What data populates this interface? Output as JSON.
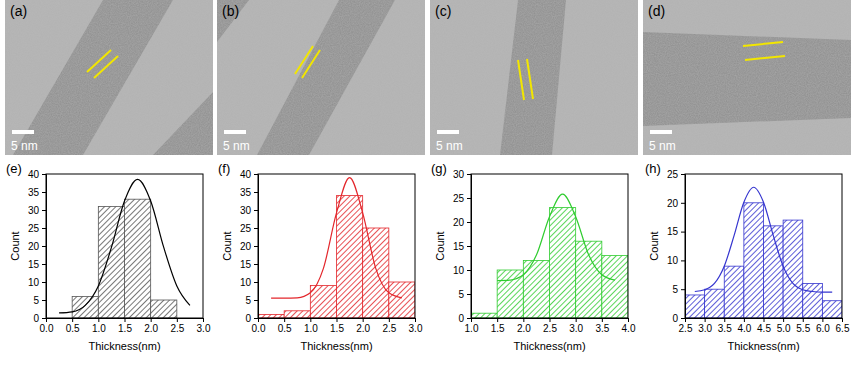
{
  "images": [
    {
      "label": "(a)",
      "scale_bar": "5 nm"
    },
    {
      "label": "(b)",
      "scale_bar": "5 nm"
    },
    {
      "label": "(c)",
      "scale_bar": "5 nm"
    },
    {
      "label": "(d)",
      "scale_bar": "5 nm"
    }
  ],
  "chart_data": [
    {
      "type": "histogram",
      "title": "(e)",
      "x_label": "Thickness(nm)",
      "y_label": "Count",
      "bins": [
        0.5,
        1.0,
        1.5,
        2.0,
        2.5
      ],
      "values": [
        6,
        31,
        33,
        5
      ],
      "color": "#555555",
      "xlim": [
        0,
        3
      ],
      "xticks": [
        {
          "value": 0,
          "label": "0.0"
        },
        0.5,
        {
          "value": 1,
          "label": "1.0"
        },
        1.5,
        {
          "value": 2,
          "label": "2.0"
        },
        2.5,
        {
          "value": 3,
          "label": "3.0"
        }
      ],
      "ylim": [
        0,
        40
      ],
      "yticks": [
        0,
        5,
        10,
        15,
        20,
        25,
        30,
        35,
        40
      ],
      "series": [
        {
          "type": "line",
          "color": "#000000",
          "x": [
            0.25,
            0.5,
            0.75,
            1.0,
            1.25,
            1.5,
            1.75,
            2.0,
            2.25,
            2.5,
            2.75
          ],
          "values": [
            1.4,
            1.7,
            3.5,
            8.9,
            19.6,
            32.5,
            38.5,
            32.5,
            19.6,
            8.9,
            3.5
          ]
        }
      ]
    },
    {
      "type": "histogram",
      "title": "(f)",
      "x_label": "Thickness(nm)",
      "y_label": "Count",
      "bins": [
        0,
        0.5,
        1.0,
        1.5,
        2.0,
        2.5,
        3.0
      ],
      "values": [
        1,
        2,
        9,
        34,
        25,
        10
      ],
      "color": "#e3262b",
      "xlim": [
        0,
        3
      ],
      "xticks": [
        {
          "value": 0,
          "label": "0.0"
        },
        0.5,
        {
          "value": 1,
          "label": "1.0"
        },
        1.5,
        {
          "value": 2,
          "label": "2.0"
        },
        2.5,
        {
          "value": 3,
          "label": "3.0"
        }
      ],
      "ylim": [
        0,
        40
      ],
      "yticks": [
        0,
        5,
        10,
        15,
        20,
        25,
        30,
        35,
        40
      ],
      "series": [
        {
          "type": "line",
          "color": "#e3262b",
          "x": [
            0.25,
            0.5,
            0.75,
            1.0,
            1.25,
            1.5,
            1.75,
            2.0,
            2.25,
            2.5,
            2.75
          ],
          "values": [
            5.5,
            5.5,
            5.6,
            7.0,
            13.8,
            29.2,
            39.0,
            29.2,
            13.8,
            7.0,
            5.6
          ]
        }
      ]
    },
    {
      "type": "histogram",
      "title": "(g)",
      "x_label": "Thickness(nm)",
      "y_label": "Count",
      "bins": [
        1.0,
        1.5,
        2.0,
        2.5,
        3.0,
        3.5,
        4.0
      ],
      "values": [
        1,
        10,
        12,
        23,
        16,
        13
      ],
      "color": "#2fcc2f",
      "xlim": [
        1,
        4
      ],
      "xticks": [
        {
          "value": 1,
          "label": "1.0"
        },
        1.5,
        {
          "value": 2,
          "label": "2.0"
        },
        2.5,
        {
          "value": 3,
          "label": "3.0"
        },
        3.5,
        {
          "value": 4,
          "label": "4.0"
        }
      ],
      "ylim": [
        0,
        30
      ],
      "yticks": [
        0,
        5,
        10,
        15,
        20,
        25,
        30
      ],
      "series": [
        {
          "type": "line",
          "color": "#2fcc2f",
          "x": [
            1.5,
            1.75,
            2.0,
            2.25,
            2.5,
            2.75,
            3.0,
            3.25,
            3.5,
            3.75
          ],
          "values": [
            7.8,
            7.9,
            9.0,
            13.1,
            21.1,
            25.8,
            21.1,
            13.1,
            9.0,
            7.9
          ]
        }
      ]
    },
    {
      "type": "histogram",
      "title": "(h)",
      "x_label": "Thickness(nm)",
      "y_label": "Count",
      "bins": [
        2.5,
        3.0,
        3.5,
        4.0,
        4.5,
        5.0,
        5.5,
        6.0,
        6.5
      ],
      "values": [
        4,
        5,
        9,
        20,
        16,
        17,
        6,
        3
      ],
      "color": "#3535cf",
      "xlim": [
        2.5,
        6.5
      ],
      "xticks": [
        2.5,
        {
          "value": 3,
          "label": "3.0"
        },
        3.5,
        {
          "value": 4,
          "label": "4.0"
        },
        4.5,
        {
          "value": 5,
          "label": "5.0"
        },
        5.5,
        {
          "value": 6,
          "label": "6.0"
        },
        6.5
      ],
      "ylim": [
        0,
        25
      ],
      "yticks": [
        0,
        5,
        10,
        15,
        20,
        25
      ],
      "series": [
        {
          "type": "line",
          "color": "#3535cf",
          "x": [
            2.75,
            3.0,
            3.25,
            3.5,
            3.75,
            4.0,
            4.25,
            4.5,
            4.75,
            5.0,
            5.25,
            5.5,
            5.75,
            6.0,
            6.25
          ],
          "values": [
            4.6,
            4.9,
            6.0,
            9.0,
            14.3,
            20.1,
            22.7,
            20.1,
            14.3,
            9.0,
            6.0,
            4.9,
            4.6,
            4.5,
            4.5
          ]
        }
      ]
    }
  ]
}
